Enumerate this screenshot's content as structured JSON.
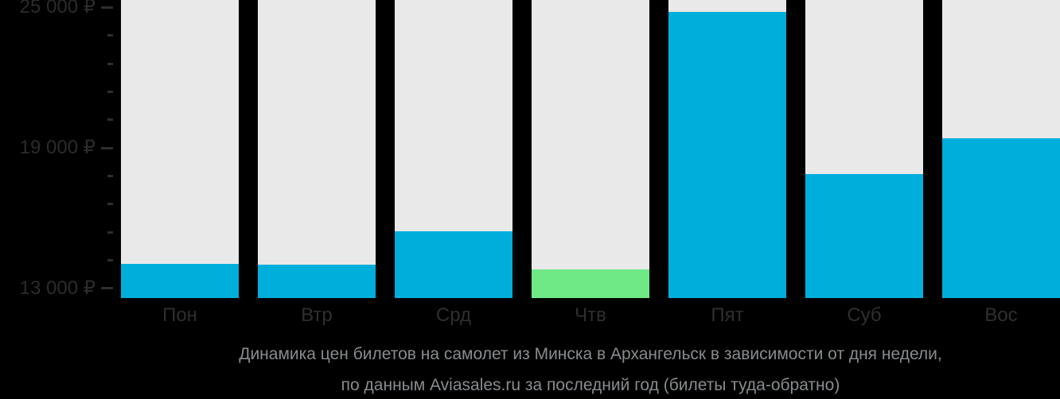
{
  "chart_data": {
    "type": "bar",
    "title": "Динамика цен билетов на самолет из Минска в Архангельск в зависимости от дня недели,",
    "subtitle": "по данным Aviasales.ru за последний год (билеты туда-обратно)",
    "categories": [
      "Пон",
      "Втр",
      "Срд",
      "Чтв",
      "Пят",
      "Суб",
      "Вос"
    ],
    "values": [
      14050,
      14000,
      15450,
      13800,
      24800,
      17900,
      19400
    ],
    "unit": "₽",
    "ylim": [
      12590,
      25320
    ],
    "yticks": [
      {
        "value": 25000,
        "label": "25 000 ₽"
      },
      {
        "value": 19000,
        "label": "19 000 ₽"
      },
      {
        "value": 13000,
        "label": "13 000 ₽"
      }
    ],
    "minor_tick_step": 1200,
    "min_value_index": 3,
    "legend": "none",
    "grid": false,
    "xlabel": "",
    "ylabel": "",
    "colors": {
      "background": "#000000",
      "column_bg": "#E9E9E9",
      "bar": "#00AEDC",
      "bar_min": "#6EE986",
      "tick": "#2E2E2E",
      "axis_text": "#2B2B2B",
      "day_label": "#2F2F2F",
      "caption_text": "#888B8E"
    }
  }
}
